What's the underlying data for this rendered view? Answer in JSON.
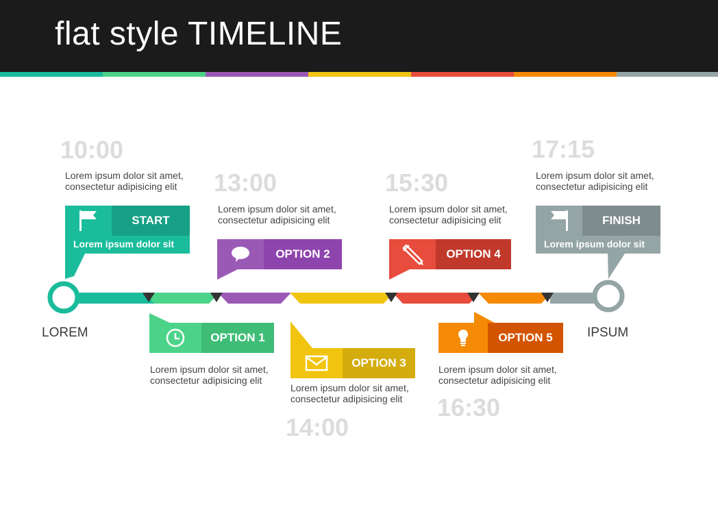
{
  "header": {
    "title": "flat style TIMELINE"
  },
  "colors": {
    "teal": "#1abc9c",
    "teal_dark": "#16a085",
    "green": "#4cd38a",
    "green_dark": "#3fbd77",
    "purple": "#9b59b6",
    "purple_dark": "#8e44ad",
    "yellow": "#f1c40f",
    "yellow_dark": "#d4ac0d",
    "red": "#e74c3c",
    "red_dark": "#c0392b",
    "orange": "#f58a07",
    "orange_dark": "#d35400",
    "gray": "#95a5a6",
    "gray_dark": "#7f8c8d",
    "header_bg": "#1b1b1b",
    "time_text": "#dcdcdc"
  },
  "timeline": {
    "start_label": "LOREM",
    "end_label": "IPSUM"
  },
  "events": [
    {
      "id": "start",
      "label": "START",
      "time": "10:00",
      "icon": "flag-icon",
      "desc1": "Lorem ipsum dolor sit amet,",
      "desc2": "consectetur adipisicing elit",
      "sub": "Lorem ipsum dolor sit"
    },
    {
      "id": "option1",
      "label": "OPTION 1",
      "time": "",
      "icon": "clock-icon",
      "desc1": "Lorem ipsum dolor sit amet,",
      "desc2": "consectetur adipisicing elit"
    },
    {
      "id": "option2",
      "label": "OPTION 2",
      "time": "13:00",
      "icon": "speech-bubble-icon",
      "desc1": "Lorem ipsum dolor sit amet,",
      "desc2": "consectetur adipisicing elit"
    },
    {
      "id": "option3",
      "label": "OPTION 3",
      "time": "14:00",
      "icon": "envelope-icon",
      "desc1": "Lorem ipsum dolor sit amet,",
      "desc2": "consectetur adipisicing elit"
    },
    {
      "id": "option4",
      "label": "OPTION 4",
      "time": "15:30",
      "icon": "pencil-icon",
      "desc1": "Lorem ipsum dolor sit amet,",
      "desc2": "consectetur adipisicing elit"
    },
    {
      "id": "option5",
      "label": "OPTION 5",
      "time": "16:30",
      "icon": "lightbulb-icon",
      "desc1": "Lorem ipsum dolor sit amet,",
      "desc2": "consectetur adipisicing elit"
    },
    {
      "id": "finish",
      "label": "FINISH",
      "time": "17:15",
      "icon": "flag-icon",
      "desc1": "Lorem ipsum dolor sit amet,",
      "desc2": "consectetur adipisicing elit",
      "sub": "Lorem ipsum dolor sit"
    }
  ]
}
